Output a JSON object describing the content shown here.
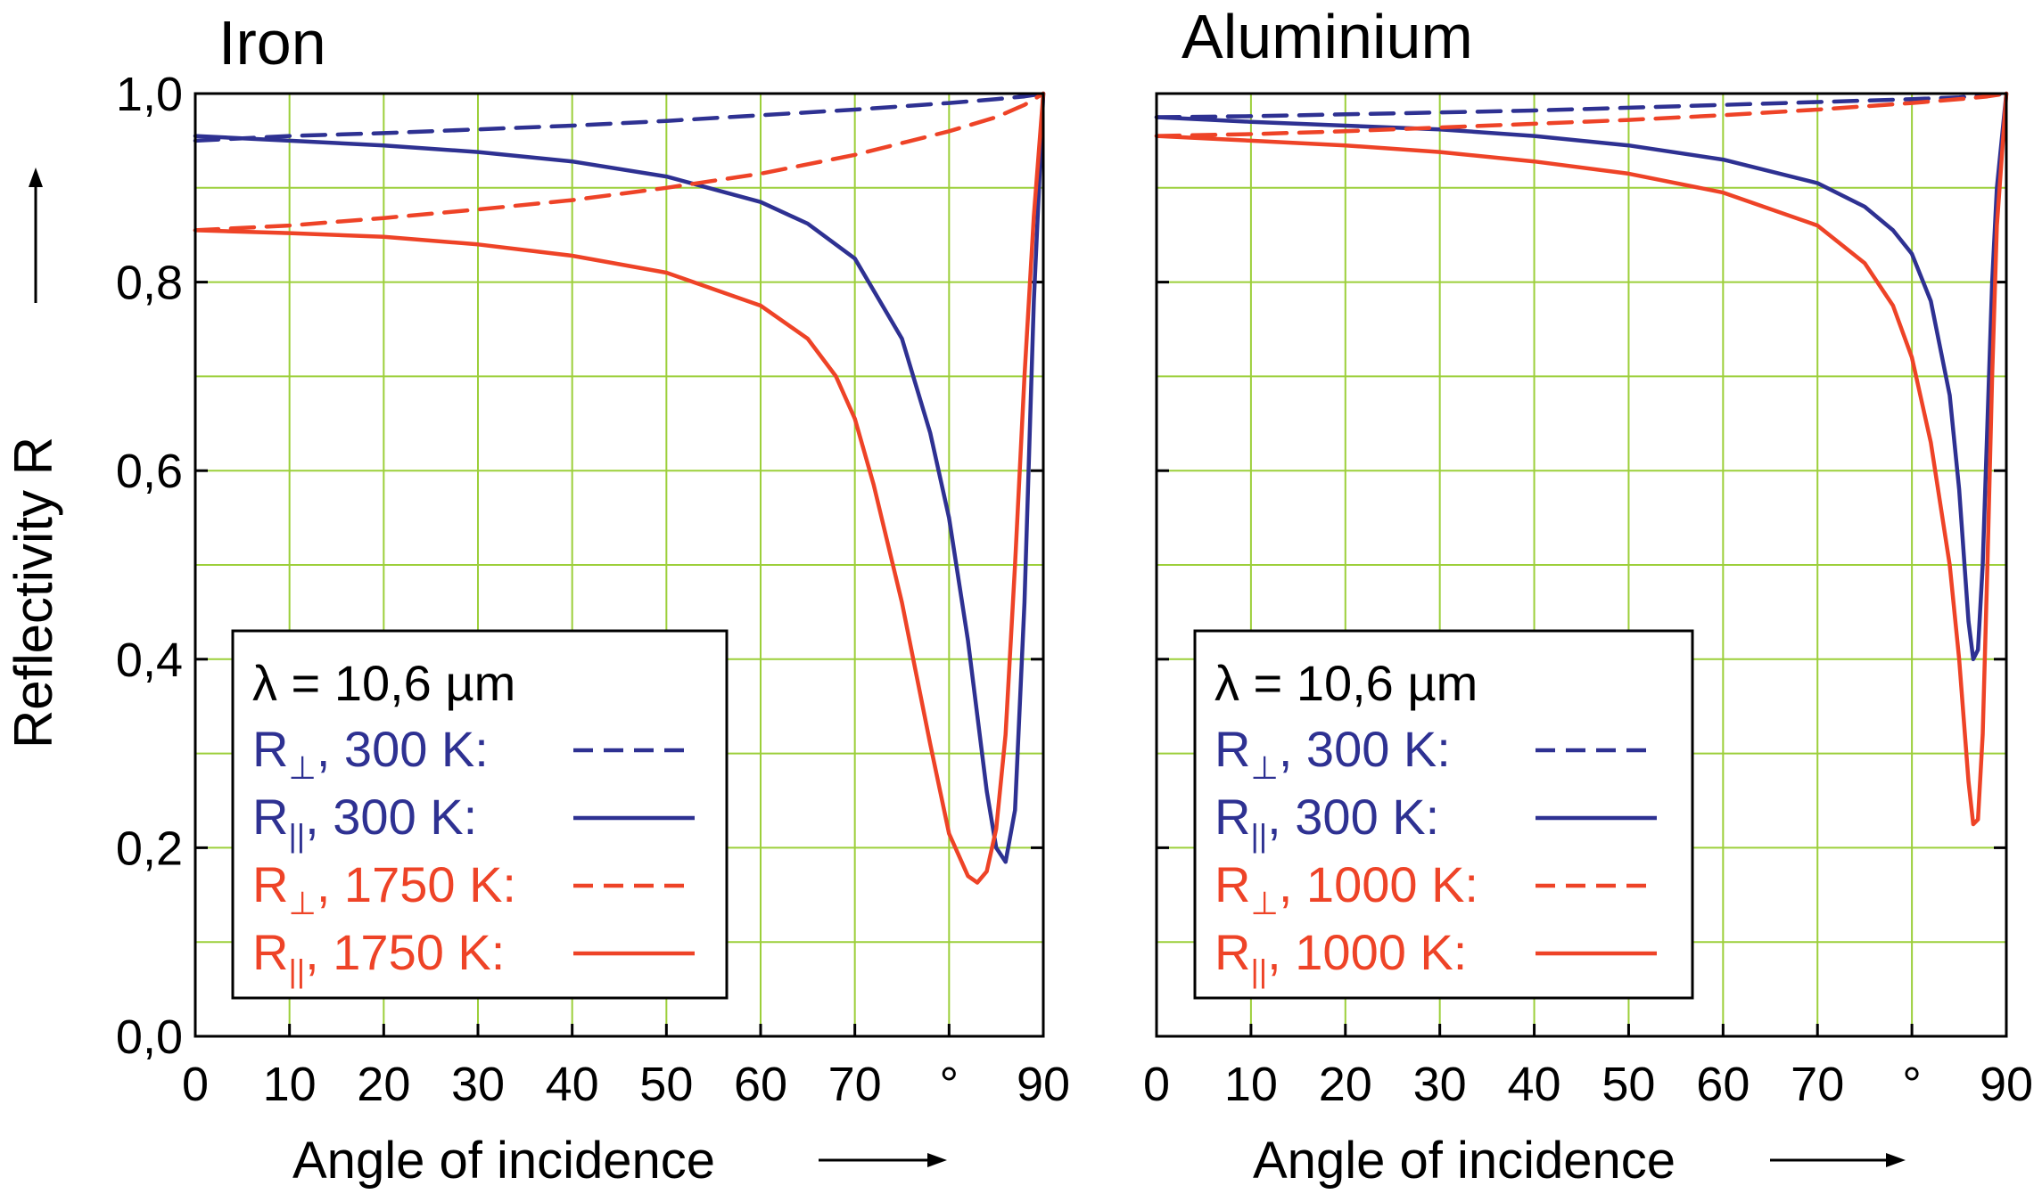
{
  "y_axis_label": "Reflectivity R",
  "x_axis_label": "Angle of incidence",
  "x_ticks": [
    "0",
    "10",
    "20",
    "30",
    "40",
    "50",
    "60",
    "70",
    "°",
    "90"
  ],
  "y_ticks": [
    "0,0",
    "0,2",
    "0,4",
    "0,6",
    "0,8",
    "1,0"
  ],
  "colors": {
    "blue": "#2e3192",
    "red": "#ee4327",
    "grid": "#9ccf3a",
    "axis": "#000000"
  },
  "chart_data": [
    {
      "type": "line",
      "title": "Iron",
      "xlabel": "Angle of incidence",
      "ylabel": "Reflectivity R",
      "xlim": [
        0,
        90
      ],
      "ylim": [
        0,
        1
      ],
      "grid": true,
      "legend_placement": "bottom-left",
      "legend_title": "λ = 10,6 µm",
      "series": [
        {
          "name": "R⊥, 300 K:",
          "symbol": "R",
          "subscript": "⊥",
          "label_rest": ", 300 K:",
          "color": "#2e3192",
          "dash": true,
          "x": [
            0,
            10,
            20,
            30,
            40,
            50,
            60,
            70,
            80,
            85,
            88,
            90
          ],
          "y": [
            0.95,
            0.955,
            0.958,
            0.962,
            0.966,
            0.971,
            0.977,
            0.983,
            0.99,
            0.994,
            0.997,
            1.0
          ]
        },
        {
          "name": "R||, 300 K:",
          "symbol": "R",
          "subscript": "||",
          "label_rest": ", 300 K:",
          "color": "#2e3192",
          "dash": false,
          "x": [
            0,
            10,
            20,
            30,
            40,
            50,
            60,
            65,
            70,
            75,
            78,
            80,
            82,
            84,
            85,
            86,
            87,
            88,
            89,
            90
          ],
          "y": [
            0.955,
            0.95,
            0.945,
            0.938,
            0.928,
            0.912,
            0.885,
            0.862,
            0.825,
            0.74,
            0.64,
            0.55,
            0.42,
            0.26,
            0.2,
            0.185,
            0.24,
            0.46,
            0.78,
            1.0
          ]
        },
        {
          "name": "R⊥, 1750 K:",
          "symbol": "R",
          "subscript": "⊥",
          "label_rest": ", 1750 K:",
          "color": "#ee4327",
          "dash": true,
          "x": [
            0,
            10,
            20,
            30,
            40,
            50,
            60,
            70,
            80,
            85,
            88,
            90
          ],
          "y": [
            0.855,
            0.86,
            0.868,
            0.877,
            0.887,
            0.9,
            0.915,
            0.935,
            0.96,
            0.975,
            0.988,
            1.0
          ]
        },
        {
          "name": "R||, 1750 K:",
          "symbol": "R",
          "subscript": "||",
          "label_rest": ", 1750 K:",
          "color": "#ee4327",
          "dash": false,
          "x": [
            0,
            10,
            20,
            30,
            40,
            50,
            60,
            65,
            68,
            70,
            72,
            75,
            78,
            80,
            82,
            83,
            84,
            85,
            86,
            87,
            88,
            89,
            90
          ],
          "y": [
            0.855,
            0.852,
            0.848,
            0.84,
            0.828,
            0.81,
            0.775,
            0.74,
            0.7,
            0.655,
            0.585,
            0.46,
            0.31,
            0.215,
            0.17,
            0.163,
            0.175,
            0.22,
            0.32,
            0.5,
            0.7,
            0.87,
            1.0
          ]
        }
      ]
    },
    {
      "type": "line",
      "title": "Aluminium",
      "xlabel": "Angle of incidence",
      "xlim": [
        0,
        90
      ],
      "ylim": [
        0,
        1
      ],
      "grid": true,
      "legend_placement": "bottom-left",
      "legend_title": "λ = 10,6 µm",
      "series": [
        {
          "name": "R⊥, 300 K:",
          "symbol": "R",
          "subscript": "⊥",
          "label_rest": ", 300 K:",
          "color": "#2e3192",
          "dash": true,
          "x": [
            0,
            10,
            20,
            30,
            40,
            50,
            60,
            70,
            80,
            85,
            88,
            90
          ],
          "y": [
            0.975,
            0.976,
            0.978,
            0.98,
            0.982,
            0.985,
            0.988,
            0.991,
            0.994,
            0.996,
            0.998,
            1.0
          ]
        },
        {
          "name": "R||, 300 K:",
          "symbol": "R",
          "subscript": "||",
          "label_rest": ", 300 K:",
          "color": "#2e3192",
          "dash": false,
          "x": [
            0,
            10,
            20,
            30,
            40,
            50,
            60,
            70,
            75,
            78,
            80,
            82,
            84,
            85,
            86,
            86.5,
            87,
            87.5,
            88,
            88.5,
            89,
            90
          ],
          "y": [
            0.975,
            0.97,
            0.966,
            0.962,
            0.955,
            0.945,
            0.93,
            0.905,
            0.88,
            0.855,
            0.83,
            0.78,
            0.68,
            0.58,
            0.44,
            0.4,
            0.41,
            0.5,
            0.65,
            0.8,
            0.9,
            1.0
          ]
        },
        {
          "name": "R⊥, 1000 K:",
          "symbol": "R",
          "subscript": "⊥",
          "label_rest": ", 1000 K:",
          "color": "#ee4327",
          "dash": true,
          "x": [
            0,
            10,
            20,
            30,
            40,
            50,
            60,
            70,
            80,
            85,
            88,
            90
          ],
          "y": [
            0.955,
            0.957,
            0.96,
            0.964,
            0.968,
            0.972,
            0.977,
            0.983,
            0.99,
            0.994,
            0.997,
            1.0
          ]
        },
        {
          "name": "R||, 1000 K:",
          "symbol": "R",
          "subscript": "||",
          "label_rest": ", 1000 K:",
          "color": "#ee4327",
          "dash": false,
          "x": [
            0,
            10,
            20,
            30,
            40,
            50,
            60,
            70,
            75,
            78,
            80,
            82,
            84,
            85,
            86,
            86.5,
            87,
            87.5,
            88,
            88.5,
            89,
            90
          ],
          "y": [
            0.955,
            0.95,
            0.945,
            0.938,
            0.928,
            0.915,
            0.895,
            0.86,
            0.82,
            0.775,
            0.72,
            0.63,
            0.5,
            0.4,
            0.27,
            0.225,
            0.23,
            0.32,
            0.5,
            0.7,
            0.86,
            1.0
          ]
        }
      ]
    }
  ]
}
